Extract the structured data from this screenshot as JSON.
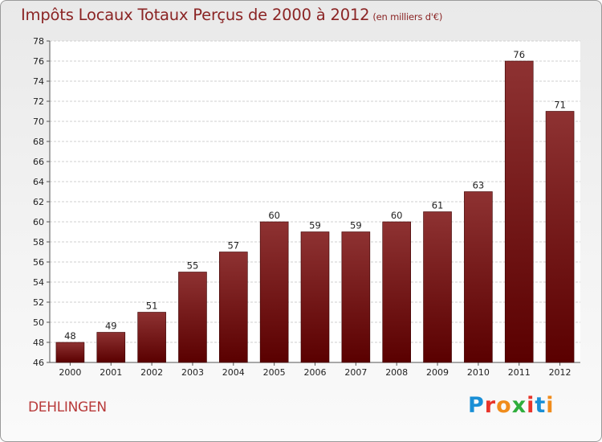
{
  "header": {
    "title": "Impôts Locaux Totaux Perçus de 2000 à 2012",
    "unit_note": "(en milliers d'€)"
  },
  "location": "DEHLINGEN",
  "logo_text": "Proxiti",
  "logo_colors": [
    "#1a8fd6",
    "#e8342a",
    "#f08c1c",
    "#2fae3c",
    "#e8342a",
    "#1a8fd6",
    "#f08c1c"
  ],
  "chart_data": {
    "type": "bar",
    "title": "Impôts Locaux Totaux Perçus de 2000 à 2012",
    "xlabel": "",
    "ylabel": "",
    "categories": [
      "2000",
      "2001",
      "2002",
      "2003",
      "2004",
      "2005",
      "2006",
      "2007",
      "2008",
      "2009",
      "2010",
      "2011",
      "2012"
    ],
    "values": [
      48,
      49,
      51,
      55,
      57,
      60,
      59,
      59,
      60,
      61,
      63,
      76,
      71
    ],
    "ylim": [
      46,
      78
    ],
    "yticks": [
      46,
      48,
      50,
      52,
      54,
      56,
      58,
      60,
      62,
      64,
      66,
      68,
      70,
      72,
      74,
      76,
      78
    ],
    "grid": true,
    "bar_color": "#8b2a2a"
  }
}
